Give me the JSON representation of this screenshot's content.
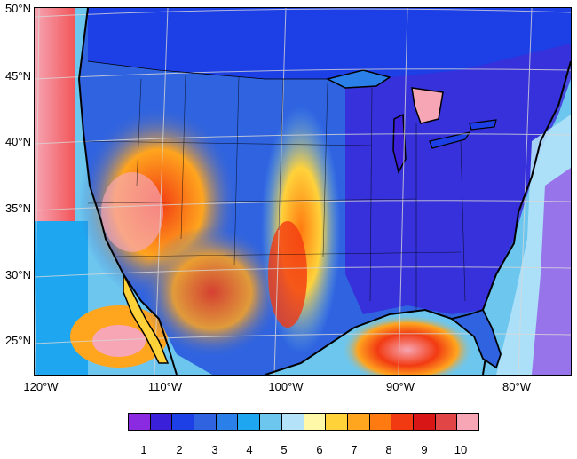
{
  "map": {
    "lat_labels": [
      "50°N",
      "45°N",
      "40°N",
      "35°N",
      "30°N",
      "25°N"
    ],
    "lon_labels": [
      "120°W",
      "110°W",
      "100°W",
      "90°W",
      "80°W"
    ]
  },
  "colorbar": {
    "colors": [
      "#8a2be2",
      "#3a20d8",
      "#1c3fe6",
      "#2f63e0",
      "#2a7fe8",
      "#1ea7f0",
      "#6cc6ee",
      "#b4e2f8",
      "#fff8a8",
      "#ffd23a",
      "#ffa51e",
      "#ff7a10",
      "#f23a12",
      "#d81616",
      "#e24545",
      "#f6a6b4"
    ],
    "labels": [
      "1",
      "2",
      "3",
      "4",
      "5",
      "6",
      "7",
      "8",
      "9",
      "10"
    ]
  }
}
